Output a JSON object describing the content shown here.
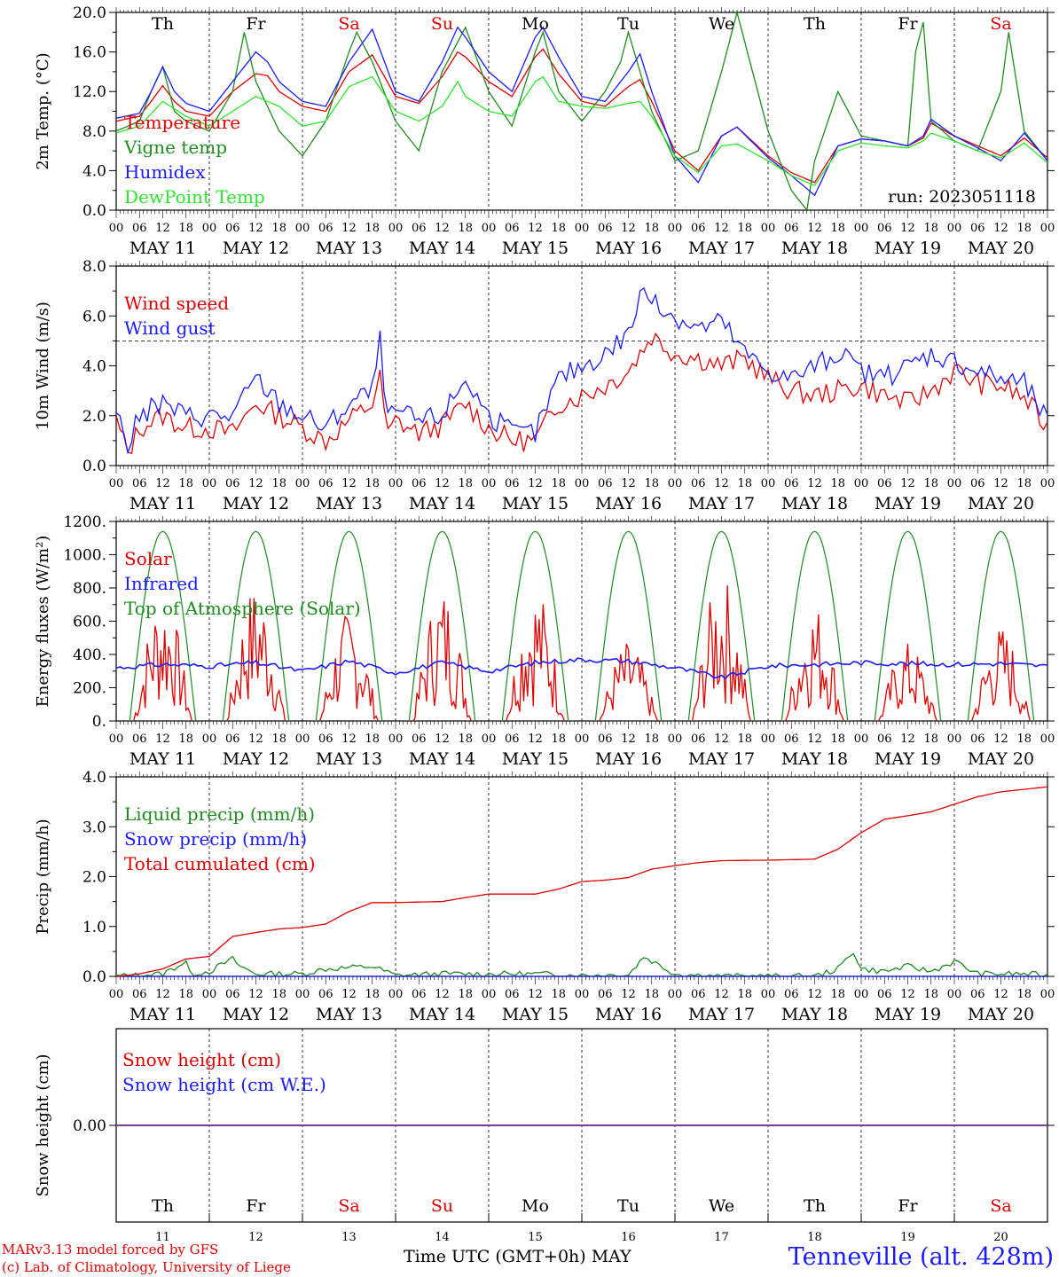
{
  "theme": {
    "red": "#e00000",
    "green": "#1e8c1e",
    "blue": "#1a1aff",
    "lime": "#2ee62e",
    "purple": "#7a3aa0",
    "weekend_color": "#e00000",
    "weekday_color": "#000000"
  },
  "footer": {
    "credit_line1": "MARv3.13 model forced by GFS",
    "credit_line2": "(c) Lab. of Climatology, University of Liege",
    "xaxis_label": "Time UTC (GMT+0h) MAY",
    "station": "Tenneville (alt. 428m)"
  },
  "time_axis": {
    "days": [
      "MAY 11",
      "MAY 12",
      "MAY 13",
      "MAY 14",
      "MAY 15",
      "MAY 16",
      "MAY 17",
      "MAY 18",
      "MAY 19",
      "MAY 20"
    ],
    "weekdays": [
      "Th",
      "Fr",
      "Sa",
      "Su",
      "Mo",
      "Tu",
      "We",
      "Th",
      "Fr",
      "Sa"
    ],
    "weekend": [
      false,
      false,
      true,
      true,
      false,
      false,
      false,
      false,
      false,
      true
    ],
    "day_numbers": [
      "11",
      "12",
      "13",
      "14",
      "15",
      "16",
      "17",
      "18",
      "19",
      "20"
    ],
    "hour_ticks": [
      "00",
      "06",
      "12",
      "18"
    ],
    "final_tick": "00",
    "hours_span": 240
  },
  "chart_data": [
    {
      "id": "temperature",
      "type": "line",
      "ylabel": "2m Temp. (°C)",
      "ylim": [
        0,
        20
      ],
      "yticks": [
        "0.0",
        "4.0",
        "8.0",
        "12.0",
        "16.0",
        "20.0"
      ],
      "annotation": "run: 2023051118",
      "show_weekdays": true,
      "x_unit": "hours since MAY 11 00 UTC",
      "series": [
        {
          "name": "Temperature",
          "color": "#e00000",
          "x": [
            0,
            6,
            9,
            12,
            15,
            18,
            24,
            30,
            36,
            39,
            42,
            48,
            54,
            60,
            66,
            72,
            78,
            84,
            88,
            90,
            96,
            102,
            108,
            110,
            114,
            120,
            126,
            132,
            135,
            138,
            144,
            150,
            156,
            160,
            168,
            174,
            180,
            186,
            192,
            198,
            204,
            208,
            210,
            216,
            222,
            228,
            234,
            240
          ],
          "y": [
            9.0,
            9.5,
            11.0,
            12.6,
            11.0,
            10.0,
            9.5,
            12.0,
            13.8,
            13.6,
            12.0,
            10.5,
            10.0,
            14.0,
            15.7,
            11.5,
            10.8,
            13.5,
            16.0,
            15.5,
            13.0,
            11.5,
            15.5,
            16.3,
            13.8,
            11.0,
            10.5,
            12.5,
            13.2,
            11.0,
            6.0,
            4.0,
            7.5,
            8.4,
            5.5,
            3.8,
            2.8,
            6.5,
            7.2,
            7.0,
            6.5,
            7.3,
            8.8,
            7.5,
            6.5,
            5.5,
            7.3,
            5.3
          ]
        },
        {
          "name": "Vigne temp",
          "color": "#1e8c1e",
          "x": [
            0,
            6,
            9,
            12,
            15,
            18,
            24,
            30,
            33,
            36,
            42,
            48,
            54,
            60,
            62,
            66,
            72,
            78,
            84,
            90,
            96,
            102,
            108,
            110,
            114,
            120,
            126,
            130,
            132,
            135,
            138,
            144,
            150,
            156,
            160,
            168,
            174,
            178,
            180,
            186,
            192,
            198,
            204,
            206,
            208,
            210,
            216,
            222,
            228,
            230,
            234,
            240
          ],
          "y": [
            8.0,
            9.0,
            12.0,
            14.5,
            10.0,
            9.0,
            8.0,
            12.0,
            18.0,
            13.0,
            8.0,
            5.5,
            9.0,
            16.0,
            18.0,
            15.0,
            9.0,
            6.0,
            14.0,
            18.5,
            12.0,
            8.5,
            16.0,
            18.0,
            12.0,
            9.0,
            12.0,
            15.0,
            18.0,
            14.0,
            10.0,
            5.0,
            6.0,
            14.0,
            20.0,
            8.0,
            2.0,
            0.0,
            5.0,
            12.0,
            7.5,
            7.0,
            6.5,
            16.0,
            19.0,
            9.0,
            7.0,
            6.0,
            12.0,
            18.0,
            8.0,
            5.0
          ]
        },
        {
          "name": "Humidex",
          "color": "#1a1aff",
          "x": [
            0,
            6,
            9,
            12,
            15,
            18,
            24,
            30,
            36,
            39,
            42,
            48,
            54,
            60,
            66,
            72,
            78,
            84,
            88,
            90,
            96,
            102,
            108,
            110,
            114,
            120,
            126,
            132,
            135,
            138,
            144,
            150,
            156,
            160,
            168,
            174,
            180,
            186,
            192,
            198,
            204,
            208,
            210,
            216,
            222,
            228,
            234,
            240
          ],
          "y": [
            9.3,
            9.8,
            12.0,
            14.5,
            12.0,
            10.8,
            10.0,
            13.0,
            16.0,
            15.0,
            13.0,
            11.0,
            10.5,
            15.0,
            18.3,
            12.0,
            11.0,
            15.0,
            18.5,
            17.5,
            14.0,
            12.0,
            17.5,
            18.5,
            15.5,
            11.5,
            11.0,
            14.0,
            15.8,
            12.0,
            5.5,
            2.8,
            7.5,
            8.4,
            5.3,
            3.5,
            1.5,
            6.5,
            7.2,
            7.0,
            6.5,
            7.5,
            9.2,
            7.5,
            6.3,
            5.0,
            7.8,
            5.0
          ]
        },
        {
          "name": "DewPoint Temp",
          "color": "#2ee62e",
          "x": [
            0,
            6,
            12,
            18,
            24,
            30,
            36,
            42,
            48,
            54,
            60,
            66,
            72,
            78,
            84,
            88,
            90,
            96,
            102,
            108,
            110,
            114,
            120,
            126,
            132,
            135,
            138,
            144,
            150,
            156,
            160,
            168,
            174,
            180,
            186,
            192,
            198,
            204,
            208,
            210,
            216,
            222,
            228,
            234,
            240
          ],
          "y": [
            7.8,
            8.5,
            11.0,
            9.5,
            8.5,
            10.0,
            11.5,
            10.5,
            8.5,
            9.0,
            12.5,
            13.5,
            10.0,
            9.0,
            10.5,
            13.0,
            11.5,
            10.0,
            9.5,
            13.0,
            13.5,
            11.0,
            10.5,
            10.3,
            10.8,
            11.0,
            9.5,
            5.5,
            3.8,
            6.5,
            6.7,
            5.0,
            3.5,
            2.5,
            6.0,
            6.8,
            6.5,
            6.3,
            7.0,
            7.8,
            7.0,
            6.0,
            5.3,
            6.8,
            4.8
          ]
        }
      ]
    },
    {
      "id": "wind",
      "type": "line",
      "ylabel": "10m Wind (m/s)",
      "ylim": [
        0,
        8
      ],
      "yticks": [
        "0.0",
        "2.0",
        "4.0",
        "6.0",
        "8.0"
      ],
      "reference_line": 5.0,
      "show_weekdays": false,
      "x_unit": "hours since MAY 11 00 UTC",
      "series": [
        {
          "name": "Wind speed",
          "color": "#e00000",
          "x": [
            0,
            3,
            6,
            12,
            18,
            24,
            30,
            36,
            42,
            48,
            54,
            60,
            66,
            68,
            70,
            72,
            78,
            84,
            90,
            96,
            102,
            108,
            114,
            120,
            126,
            132,
            138,
            144,
            150,
            156,
            162,
            168,
            174,
            180,
            186,
            192,
            198,
            204,
            210,
            216,
            222,
            228,
            234,
            240
          ],
          "y": [
            1.8,
            0.5,
            1.5,
            2.0,
            1.5,
            1.5,
            1.3,
            2.5,
            2.0,
            1.5,
            1.0,
            1.8,
            2.5,
            3.5,
            1.2,
            1.8,
            1.3,
            1.6,
            2.5,
            1.5,
            1.0,
            1.0,
            2.5,
            2.8,
            3.2,
            3.8,
            5.2,
            4.5,
            4.3,
            4.0,
            4.3,
            3.5,
            3.0,
            2.8,
            3.0,
            3.2,
            2.8,
            2.5,
            3.0,
            3.8,
            3.3,
            3.2,
            2.7,
            1.5
          ]
        },
        {
          "name": "Wind gust",
          "color": "#1a1aff",
          "x": [
            0,
            3,
            6,
            12,
            18,
            24,
            30,
            36,
            42,
            48,
            54,
            60,
            66,
            68,
            70,
            72,
            78,
            84,
            90,
            96,
            102,
            108,
            114,
            120,
            126,
            132,
            136,
            138,
            144,
            150,
            156,
            162,
            168,
            174,
            180,
            186,
            192,
            198,
            204,
            210,
            216,
            222,
            228,
            234,
            240
          ],
          "y": [
            2.2,
            0.8,
            2.0,
            2.5,
            2.0,
            2.0,
            2.0,
            3.5,
            2.5,
            2.0,
            1.5,
            2.5,
            3.0,
            5.0,
            1.8,
            2.2,
            1.8,
            2.0,
            3.5,
            2.0,
            1.3,
            1.3,
            3.5,
            4.0,
            4.5,
            5.3,
            7.2,
            6.5,
            6.0,
            5.5,
            5.8,
            4.5,
            3.8,
            3.5,
            4.0,
            4.5,
            3.8,
            3.5,
            4.0,
            4.5,
            4.2,
            3.8,
            3.5,
            3.3,
            1.8
          ]
        }
      ]
    },
    {
      "id": "energy",
      "type": "line",
      "ylabel": "Energy fluxes (W/m²)",
      "ylim": [
        0,
        1200
      ],
      "yticks": [
        "0.",
        "200.",
        "400.",
        "600.",
        "800.",
        "1000.",
        "1200."
      ],
      "show_weekdays": false,
      "x_unit": "hours since MAY 11 00 UTC",
      "peak_hour": 12,
      "top_of_atmosphere_peak": 1140,
      "daylight_hours": [
        3.5,
        20.5
      ],
      "series": [
        {
          "name": "Solar",
          "color": "#e00000",
          "daily_peaks": [
            780,
            830,
            660,
            820,
            820,
            480,
            890,
            720,
            480,
            580
          ]
        },
        {
          "name": "Infrared",
          "color": "#1a1aff",
          "x": [
            0,
            12,
            24,
            36,
            48,
            60,
            72,
            84,
            96,
            108,
            120,
            132,
            144,
            156,
            168,
            180,
            192,
            204,
            216,
            228,
            240
          ],
          "y": [
            320,
            340,
            330,
            350,
            300,
            360,
            290,
            350,
            300,
            350,
            370,
            360,
            320,
            260,
            330,
            340,
            350,
            345,
            340,
            345,
            330
          ]
        },
        {
          "name": "Top of Atmosphere (Solar)",
          "color": "#1e8c1e"
        }
      ]
    },
    {
      "id": "precip",
      "type": "line",
      "ylabel": "Precip (mm/h)",
      "ylim": [
        0,
        4
      ],
      "yticks": [
        "0.0",
        "1.0",
        "2.0",
        "3.0",
        "4.0"
      ],
      "show_weekdays": false,
      "x_unit": "hours since MAY 11 00 UTC",
      "series": [
        {
          "name": "Liquid precip (mm/h)",
          "color": "#1e8c1e",
          "x": [
            0,
            12,
            18,
            19,
            24,
            30,
            32,
            36,
            48,
            54,
            66,
            72,
            84,
            96,
            108,
            120,
            132,
            136,
            144,
            156,
            168,
            180,
            186,
            190,
            192,
            198,
            204,
            210,
            216,
            222,
            228,
            234,
            240
          ],
          "y": [
            0.0,
            0.05,
            0.3,
            0.05,
            0.1,
            0.35,
            0.2,
            0.05,
            0.05,
            0.15,
            0.2,
            0.02,
            0.05,
            0.05,
            0.05,
            0.02,
            0.03,
            0.4,
            0.05,
            0.0,
            0.0,
            0.0,
            0.15,
            0.5,
            0.15,
            0.1,
            0.2,
            0.1,
            0.3,
            0.05,
            0.05,
            0.05,
            0.02
          ]
        },
        {
          "name": "Snow precip (mm/h)",
          "color": "#1a1aff",
          "x": [
            0,
            240
          ],
          "y": [
            0,
            0
          ]
        },
        {
          "name": "Total cumulated (cm)",
          "color": "#e00000",
          "x": [
            0,
            6,
            12,
            18,
            24,
            30,
            36,
            42,
            48,
            54,
            60,
            66,
            72,
            84,
            90,
            96,
            108,
            114,
            120,
            126,
            132,
            138,
            144,
            150,
            156,
            168,
            174,
            180,
            186,
            192,
            198,
            204,
            210,
            216,
            222,
            228,
            234,
            240
          ],
          "y": [
            0.0,
            0.05,
            0.15,
            0.35,
            0.4,
            0.8,
            0.88,
            0.95,
            0.98,
            1.05,
            1.3,
            1.48,
            1.48,
            1.5,
            1.58,
            1.65,
            1.65,
            1.75,
            1.9,
            1.93,
            1.98,
            2.15,
            2.22,
            2.28,
            2.32,
            2.33,
            2.34,
            2.35,
            2.55,
            2.88,
            3.15,
            3.22,
            3.3,
            3.45,
            3.6,
            3.7,
            3.75,
            3.8
          ]
        }
      ]
    },
    {
      "id": "snow",
      "type": "line",
      "ylabel": "Snow height (cm)",
      "ylim": [
        -1,
        1
      ],
      "yticks": [
        "0.00"
      ],
      "show_weekdays": true,
      "x_unit": "hours since MAY 11 00 UTC",
      "series": [
        {
          "name": "Snow height (cm)",
          "color": "#e00000",
          "x": [
            0,
            240
          ],
          "y": [
            0,
            0
          ]
        },
        {
          "name": "Snow height (cm W.E.)",
          "color": "#1a1aff",
          "x": [
            0,
            240
          ],
          "y": [
            0,
            0
          ]
        }
      ]
    }
  ]
}
